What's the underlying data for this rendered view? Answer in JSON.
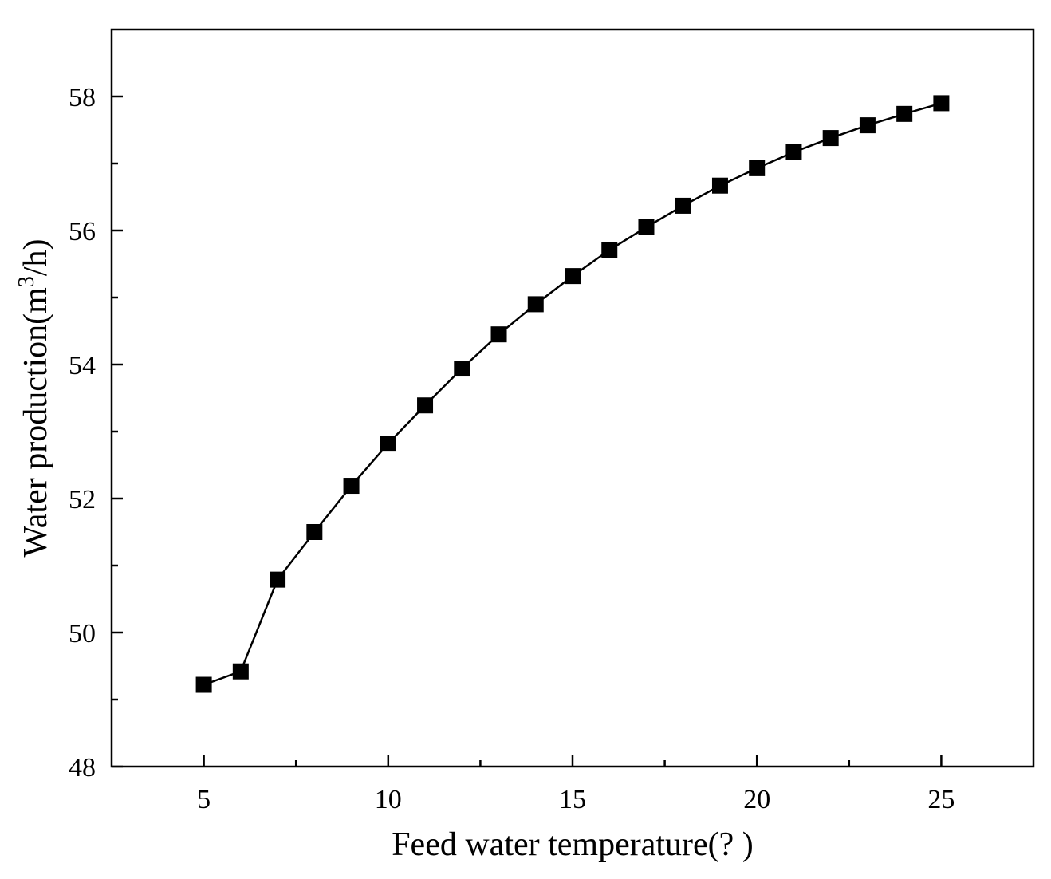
{
  "chart_data": {
    "type": "line",
    "title": "",
    "xlabel": "Feed water temperature(?  )",
    "ylabel_main": "Water production(m",
    "ylabel_sup": "3",
    "ylabel_tail": "/h)",
    "xlim": [
      2.5,
      27.5
    ],
    "ylim": [
      48,
      59
    ],
    "xticks": [
      "5",
      "10",
      "15",
      "20",
      "25"
    ],
    "yticks": [
      "48",
      "50",
      "52",
      "54",
      "56",
      "58"
    ],
    "x": [
      5,
      6,
      7,
      8,
      9,
      10,
      11,
      12,
      13,
      14,
      15,
      16,
      17,
      18,
      19,
      20,
      21,
      22,
      23,
      24,
      25
    ],
    "series": [
      {
        "name": "Water production",
        "values": [
          49.22,
          49.42,
          50.79,
          51.5,
          52.19,
          52.82,
          53.39,
          53.94,
          54.45,
          54.9,
          55.32,
          55.71,
          56.05,
          56.37,
          56.67,
          56.93,
          57.17,
          57.38,
          57.57,
          57.74,
          57.9
        ],
        "color": "#000000",
        "marker": "square"
      }
    ]
  }
}
